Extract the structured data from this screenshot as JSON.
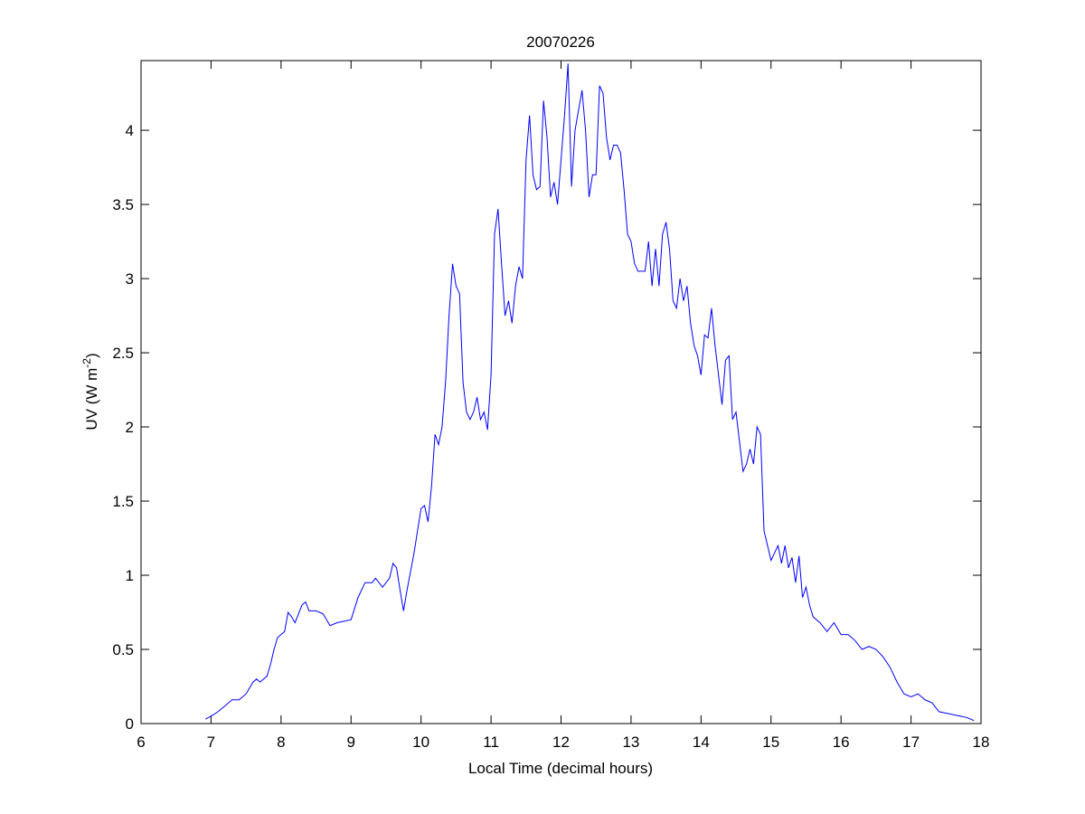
{
  "chart_data": {
    "type": "line",
    "title": "20070226",
    "xlabel": "Local Time (decimal hours)",
    "ylabel": [
      "UV (W m",
      "-2",
      ")"
    ],
    "color": "#0000ff",
    "x": [
      6.92,
      7.0,
      7.1,
      7.2,
      7.3,
      7.4,
      7.5,
      7.6,
      7.65,
      7.7,
      7.8,
      7.85,
      7.9,
      7.95,
      8.0,
      8.05,
      8.1,
      8.15,
      8.2,
      8.25,
      8.3,
      8.35,
      8.4,
      8.5,
      8.6,
      8.7,
      8.8,
      8.9,
      9.0,
      9.1,
      9.2,
      9.3,
      9.35,
      9.45,
      9.55,
      9.6,
      9.65,
      9.7,
      9.75,
      9.8,
      9.9,
      10.0,
      10.05,
      10.1,
      10.15,
      10.2,
      10.25,
      10.3,
      10.35,
      10.4,
      10.45,
      10.5,
      10.55,
      10.6,
      10.65,
      10.7,
      10.75,
      10.8,
      10.85,
      10.9,
      10.95,
      11.0,
      11.05,
      11.1,
      11.15,
      11.2,
      11.25,
      11.3,
      11.35,
      11.4,
      11.45,
      11.5,
      11.55,
      11.6,
      11.65,
      11.7,
      11.75,
      11.8,
      11.85,
      11.9,
      11.95,
      12.0,
      12.05,
      12.1,
      12.15,
      12.2,
      12.3,
      12.35,
      12.4,
      12.45,
      12.5,
      12.55,
      12.6,
      12.65,
      12.7,
      12.75,
      12.8,
      12.85,
      12.9,
      12.95,
      13.0,
      13.05,
      13.1,
      13.2,
      13.25,
      13.3,
      13.35,
      13.4,
      13.45,
      13.5,
      13.55,
      13.6,
      13.65,
      13.7,
      13.75,
      13.8,
      13.85,
      13.9,
      13.95,
      14.0,
      14.05,
      14.1,
      14.15,
      14.2,
      14.25,
      14.3,
      14.35,
      14.4,
      14.45,
      14.5,
      14.55,
      14.6,
      14.65,
      14.7,
      14.75,
      14.8,
      14.85,
      14.9,
      14.95,
      15.0,
      15.05,
      15.1,
      15.15,
      15.2,
      15.25,
      15.3,
      15.35,
      15.4,
      15.45,
      15.5,
      15.55,
      15.6,
      15.7,
      15.8,
      15.9,
      16.0,
      16.1,
      16.2,
      16.3,
      16.4,
      16.5,
      16.6,
      16.7,
      16.8,
      16.9,
      17.0,
      17.1,
      17.2,
      17.3,
      17.4,
      17.5,
      17.6,
      17.7,
      17.8,
      17.9
    ],
    "values": [
      0.03,
      0.05,
      0.08,
      0.12,
      0.16,
      0.16,
      0.2,
      0.28,
      0.3,
      0.28,
      0.32,
      0.4,
      0.5,
      0.58,
      0.6,
      0.62,
      0.75,
      0.72,
      0.68,
      0.74,
      0.8,
      0.82,
      0.76,
      0.76,
      0.74,
      0.66,
      0.68,
      0.69,
      0.7,
      0.85,
      0.95,
      0.95,
      0.98,
      0.92,
      0.98,
      1.08,
      1.05,
      0.9,
      0.76,
      0.9,
      1.15,
      1.45,
      1.47,
      1.36,
      1.6,
      1.95,
      1.88,
      2.0,
      2.3,
      2.75,
      3.1,
      2.95,
      2.9,
      2.3,
      2.1,
      2.05,
      2.1,
      2.2,
      2.05,
      2.1,
      1.98,
      2.35,
      3.3,
      3.47,
      3.1,
      2.75,
      2.85,
      2.7,
      2.95,
      3.08,
      3.0,
      3.8,
      4.1,
      3.7,
      3.6,
      3.62,
      4.2,
      3.95,
      3.55,
      3.65,
      3.5,
      3.8,
      4.1,
      4.45,
      3.62,
      4.0,
      4.27,
      4.0,
      3.55,
      3.7,
      3.7,
      4.3,
      4.25,
      3.95,
      3.8,
      3.9,
      3.9,
      3.85,
      3.6,
      3.3,
      3.25,
      3.1,
      3.05,
      3.05,
      3.25,
      2.95,
      3.2,
      2.95,
      3.3,
      3.38,
      3.2,
      2.85,
      2.8,
      3.0,
      2.85,
      2.95,
      2.7,
      2.55,
      2.48,
      2.35,
      2.62,
      2.6,
      2.8,
      2.55,
      2.35,
      2.15,
      2.45,
      2.48,
      2.05,
      2.1,
      1.9,
      1.7,
      1.75,
      1.85,
      1.75,
      2.0,
      1.95,
      1.3,
      1.2,
      1.1,
      1.15,
      1.2,
      1.08,
      1.2,
      1.05,
      1.12,
      0.95,
      1.13,
      0.85,
      0.92,
      0.8,
      0.72,
      0.68,
      0.62,
      0.68,
      0.6,
      0.6,
      0.56,
      0.5,
      0.52,
      0.5,
      0.45,
      0.38,
      0.28,
      0.2,
      0.18,
      0.2,
      0.16,
      0.14,
      0.08,
      0.07,
      0.06,
      0.05,
      0.04,
      0.02
    ],
    "xlim": [
      6,
      18
    ],
    "xticks": [
      6,
      7,
      8,
      9,
      10,
      11,
      12,
      13,
      14,
      15,
      16,
      17,
      18
    ],
    "ylim": [
      0,
      4.47
    ],
    "yticks": [
      0,
      0.5,
      1,
      1.5,
      2,
      2.5,
      3,
      3.5,
      4
    ]
  }
}
